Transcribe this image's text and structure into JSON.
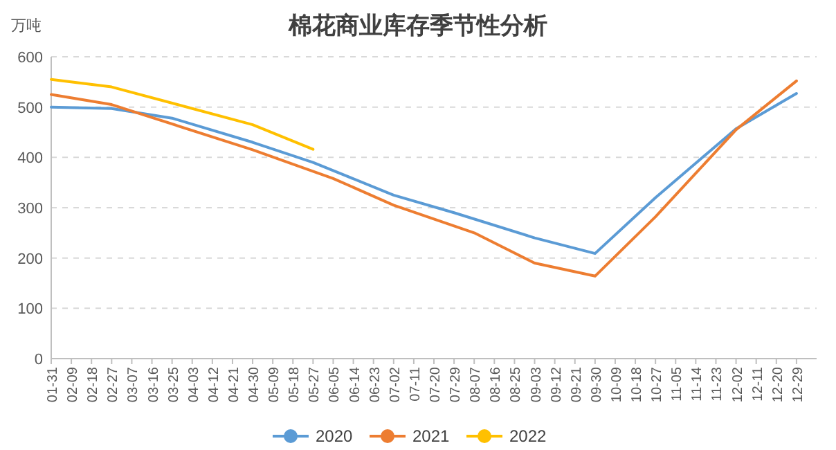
{
  "chart_data": {
    "type": "line",
    "title": "棉花商业库存季节性分析",
    "ylabel": "万吨",
    "categories": [
      "01-31",
      "02-09",
      "02-18",
      "02-27",
      "03-07",
      "03-16",
      "03-25",
      "04-03",
      "04-12",
      "04-21",
      "04-30",
      "05-09",
      "05-18",
      "05-27",
      "06-05",
      "06-14",
      "06-23",
      "07-02",
      "07-11",
      "07-20",
      "07-29",
      "08-07",
      "08-16",
      "08-25",
      "09-03",
      "09-12",
      "09-21",
      "09-30",
      "10-09",
      "10-18",
      "10-27",
      "11-05",
      "11-14",
      "11-23",
      "12-02",
      "12-11",
      "12-20",
      "12-29"
    ],
    "series": [
      {
        "name": "2020",
        "color": "#5b9bd5",
        "values": [
          500,
          null,
          null,
          497,
          null,
          null,
          478,
          null,
          null,
          null,
          430,
          null,
          null,
          390,
          null,
          null,
          null,
          325,
          null,
          null,
          290,
          null,
          null,
          null,
          240,
          null,
          null,
          209,
          null,
          null,
          320,
          null,
          null,
          null,
          457,
          null,
          null,
          527
        ]
      },
      {
        "name": "2021",
        "color": "#ed7d31",
        "values": [
          525,
          null,
          null,
          505,
          null,
          null,
          null,
          null,
          null,
          null,
          415,
          null,
          null,
          null,
          358,
          null,
          null,
          305,
          null,
          null,
          null,
          250,
          null,
          null,
          190,
          null,
          null,
          164,
          null,
          null,
          282,
          null,
          null,
          null,
          455,
          null,
          null,
          552
        ]
      },
      {
        "name": "2022",
        "color": "#ffc000",
        "values": [
          555,
          null,
          null,
          540,
          null,
          null,
          null,
          null,
          null,
          null,
          465,
          null,
          null,
          416,
          null,
          null,
          null,
          null,
          null,
          null,
          null,
          null,
          null,
          null,
          null,
          null,
          null,
          null,
          null,
          null,
          null,
          null,
          null,
          null,
          null,
          null,
          null,
          null
        ]
      }
    ],
    "ylim": [
      0,
      600
    ],
    "yticks": [
      0,
      100,
      200,
      300,
      400,
      500,
      600
    ],
    "grid": "y",
    "legend": "bottom"
  }
}
